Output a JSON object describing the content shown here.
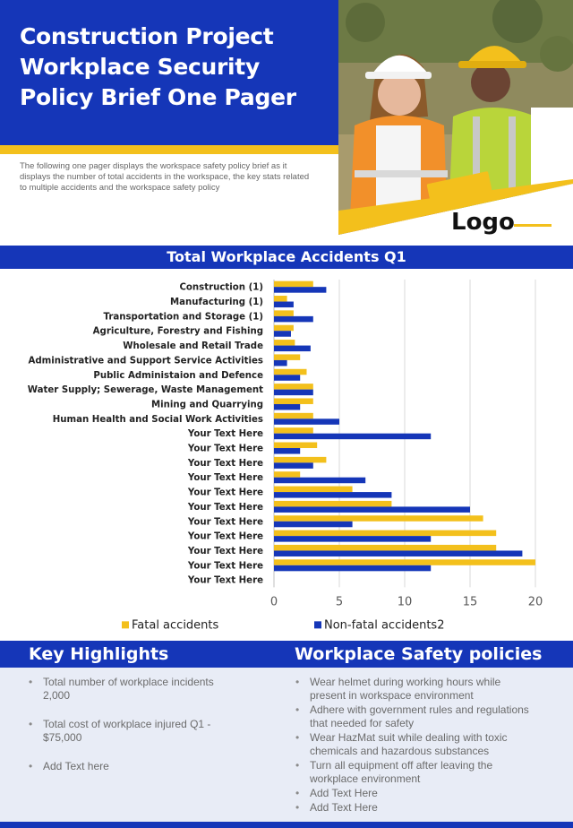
{
  "header": {
    "title": "Construction Project Workplace Security Policy Brief One Pager",
    "intro": "The following one pager displays the  workspace safety policy brief as it displays the number of total accidents in the workspace, the key stats related to multiple accidents and the workspace safety policy",
    "logo": "Logo"
  },
  "colors": {
    "primary": "#1536b8",
    "accent": "#f3c01c",
    "panel": "#e8ecf6"
  },
  "chart_section": {
    "title": "Total Workplace  Accidents Q1"
  },
  "chart_data": {
    "type": "bar",
    "orientation": "horizontal",
    "categories": [
      "Construction (1)",
      "Manufacturing (1)",
      "Transportation and Storage (1)",
      "Agriculture, Forestry and Fishing",
      "Wholesale and Retail Trade",
      "Administrative and Support Service Activities",
      "Public Administaion and Defence",
      "Water Supply; Sewerage, Waste Management",
      "Mining and Quarrying",
      "Human Health and Social Work Activities",
      "Your Text Here",
      "Your Text Here",
      "Your Text Here",
      "Your Text Here",
      "Your Text Here",
      "Your Text Here",
      "Your Text Here",
      "Your Text Here",
      "Your Text Here",
      "Your Text Here",
      "Your Text Here"
    ],
    "series": [
      {
        "name": "Fatal accidents",
        "color": "#f3c01c",
        "values": [
          3,
          1,
          1.5,
          1.5,
          1.6,
          2,
          2.5,
          3,
          3,
          3,
          3,
          3.3,
          4,
          2,
          6,
          9,
          16,
          17,
          17,
          20,
          null
        ]
      },
      {
        "name": "Non-fatal accidents2",
        "color": "#1536b8",
        "values": [
          4,
          1.5,
          3,
          1.3,
          2.8,
          1,
          2,
          3,
          2,
          5,
          12,
          2,
          3,
          7,
          9,
          15,
          6,
          12,
          19,
          12,
          null
        ]
      }
    ],
    "xlim": [
      0,
      20
    ],
    "xticks": [
      0,
      5,
      10,
      15,
      20
    ],
    "grid": true,
    "legend": "bottom"
  },
  "key_highlights": {
    "title": "Key Highlights",
    "items": [
      "Total number of workplace incidents 2,000",
      "Total cost of workplace injured Q1 - $75,000",
      "Add Text here"
    ]
  },
  "safety_policies": {
    "title": "Workplace Safety policies",
    "items": [
      "Wear helmet during  working hours  while present in workspace environment",
      "Adhere with government rules and regulations that needed for safety",
      "Wear HazMat suit while dealing with toxic chemicals and  hazardous substances",
      "Turn all equipment off after leaving the workplace environment",
      "Add Text Here",
      "Add Text Here"
    ]
  }
}
